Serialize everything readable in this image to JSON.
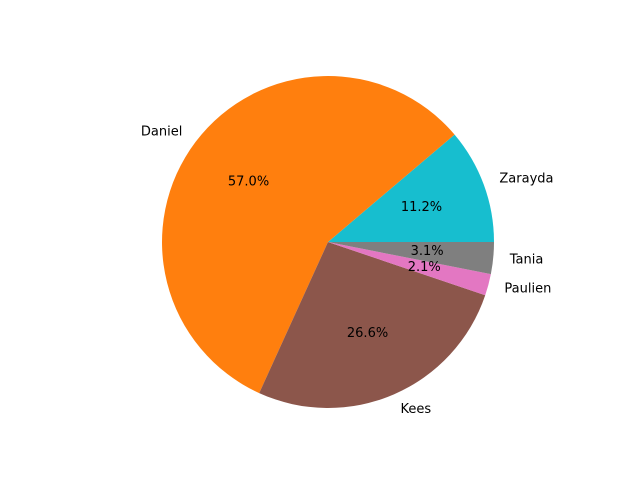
{
  "chart_data": {
    "type": "pie",
    "slices": [
      {
        "label": "Zarayda",
        "percent": 11.2,
        "percent_label": "11.2%",
        "color": "#17becf"
      },
      {
        "label": "Daniel",
        "percent": 57.0,
        "percent_label": "57.0%",
        "color": "#ff7f0e"
      },
      {
        "label": "Kees",
        "percent": 26.6,
        "percent_label": "26.6%",
        "color": "#8c564b"
      },
      {
        "label": "Paulien",
        "percent": 2.1,
        "percent_label": "2.1%",
        "color": "#e377c2"
      },
      {
        "label": "Tania",
        "percent": 3.1,
        "percent_label": "3.1%",
        "color": "#7f7f7f"
      }
    ],
    "start_angle_deg": 0,
    "direction": "counterclockwise",
    "legend": "none"
  }
}
